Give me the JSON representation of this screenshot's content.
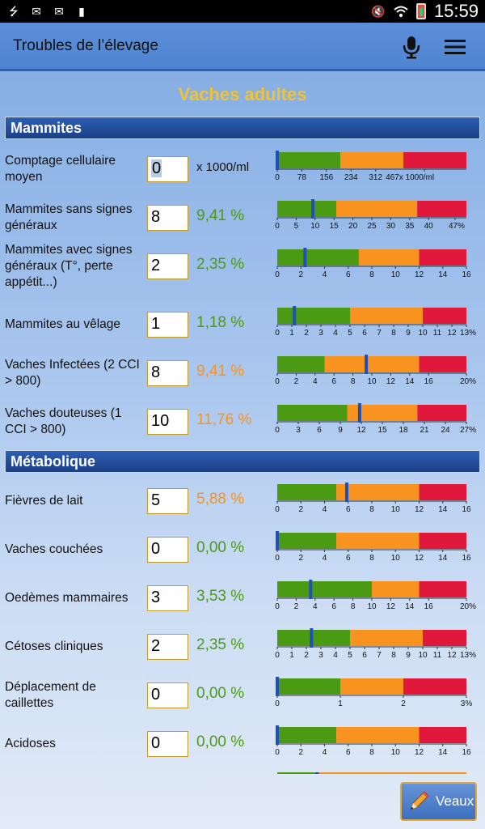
{
  "status_bar": {
    "time": "15:59",
    "left_icons": [
      "usb-icon",
      "mail-icon",
      "mail-icon",
      "usb-stick-icon"
    ],
    "right_icons": [
      "mute-icon",
      "wifi-icon",
      "battery-icon"
    ]
  },
  "app_bar": {
    "title": "Troubles de l’élevage",
    "icons": [
      "microphone-icon",
      "hamburger-menu-icon"
    ]
  },
  "heading": "Vaches adultes",
  "colors": {
    "green": "#4b9a14",
    "orange": "#f7931e",
    "red": "#e0193c",
    "marker": "#1f4fb8",
    "heading_yellow": "#f1c232",
    "pct_green": "#4b9a14",
    "pct_orange": "#f7931e"
  },
  "sections": [
    {
      "title": "Mammites",
      "rows": [
        {
          "label": "Comptage cellulaire moyen",
          "value": "0",
          "unit": "x 1000/ml",
          "pct": "",
          "pct_color": "",
          "gauge": {
            "max": 600,
            "green_end": 200,
            "orange_end": 400,
            "marker": 0,
            "ticks": [
              {
                "v": 0,
                "t": "0"
              },
              {
                "v": 78,
                "t": "78"
              },
              {
                "v": 156,
                "t": "156"
              },
              {
                "v": 234,
                "t": "234"
              },
              {
                "v": 312,
                "t": "312"
              },
              {
                "v": 467,
                "t": "467x 1000/ml"
              }
            ]
          }
        },
        {
          "label": "Mammites sans signes généraux",
          "value": "8",
          "unit": "",
          "pct": "9,41 %",
          "pct_color": "green",
          "gauge": {
            "max": 50,
            "green_end": 15.6,
            "orange_end": 37,
            "marker": 9.41,
            "ticks": [
              {
                "v": 0,
                "t": "0"
              },
              {
                "v": 5,
                "t": "5"
              },
              {
                "v": 10,
                "t": "10"
              },
              {
                "v": 15,
                "t": "15"
              },
              {
                "v": 20,
                "t": "20"
              },
              {
                "v": 25,
                "t": "25"
              },
              {
                "v": 30,
                "t": "30"
              },
              {
                "v": 35,
                "t": "35"
              },
              {
                "v": 40,
                "t": "40"
              },
              {
                "v": 47,
                "t": "47%"
              }
            ]
          }
        },
        {
          "label": "Mammites avec signes généraux (T°, perte appétit...)",
          "value": "2",
          "unit": "",
          "pct": "2,35 %",
          "pct_color": "green",
          "gauge": {
            "max": 16,
            "green_end": 6.9,
            "orange_end": 12,
            "marker": 2.35,
            "ticks": [
              {
                "v": 0,
                "t": "0"
              },
              {
                "v": 2,
                "t": "2"
              },
              {
                "v": 4,
                "t": "4"
              },
              {
                "v": 6,
                "t": "6"
              },
              {
                "v": 8,
                "t": "8"
              },
              {
                "v": 10,
                "t": "10"
              },
              {
                "v": 12,
                "t": "12"
              },
              {
                "v": 14,
                "t": "14"
              },
              {
                "v": 16,
                "t": "16"
              }
            ]
          }
        },
        {
          "label": "Mammites au vêlage",
          "value": "1",
          "unit": "",
          "pct": "1,18 %",
          "pct_color": "green",
          "gauge": {
            "max": 13,
            "green_end": 5,
            "orange_end": 10,
            "marker": 1.18,
            "ticks": [
              {
                "v": 0,
                "t": "0"
              },
              {
                "v": 1,
                "t": "1"
              },
              {
                "v": 2,
                "t": "2"
              },
              {
                "v": 3,
                "t": "3"
              },
              {
                "v": 4,
                "t": "4"
              },
              {
                "v": 5,
                "t": "5"
              },
              {
                "v": 6,
                "t": "6"
              },
              {
                "v": 7,
                "t": "7"
              },
              {
                "v": 8,
                "t": "8"
              },
              {
                "v": 9,
                "t": "9"
              },
              {
                "v": 10,
                "t": "10"
              },
              {
                "v": 11,
                "t": "11"
              },
              {
                "v": 12,
                "t": "12"
              },
              {
                "v": 13,
                "t": "13%"
              }
            ]
          }
        },
        {
          "label": "Vaches Infectées (2 CCI > 800)",
          "value": "8",
          "unit": "",
          "pct": "9,41 %",
          "pct_color": "orange",
          "gauge": {
            "max": 20,
            "green_end": 5,
            "orange_end": 15,
            "marker": 9.41,
            "ticks": [
              {
                "v": 0,
                "t": "0"
              },
              {
                "v": 2,
                "t": "2"
              },
              {
                "v": 4,
                "t": "4"
              },
              {
                "v": 6,
                "t": "6"
              },
              {
                "v": 8,
                "t": "8"
              },
              {
                "v": 10,
                "t": "10"
              },
              {
                "v": 12,
                "t": "12"
              },
              {
                "v": 14,
                "t": "14"
              },
              {
                "v": 16,
                "t": "16"
              },
              {
                "v": 20,
                "t": "20%"
              }
            ]
          }
        },
        {
          "label": "Vaches douteuses (1 CCI > 800)",
          "value": "10",
          "unit": "",
          "pct": "11,76 %",
          "pct_color": "orange",
          "gauge": {
            "max": 27,
            "green_end": 10,
            "orange_end": 20,
            "marker": 11.76,
            "ticks": [
              {
                "v": 0,
                "t": "0"
              },
              {
                "v": 3,
                "t": "3"
              },
              {
                "v": 6,
                "t": "6"
              },
              {
                "v": 9,
                "t": "9"
              },
              {
                "v": 12,
                "t": "12"
              },
              {
                "v": 15,
                "t": "15"
              },
              {
                "v": 18,
                "t": "18"
              },
              {
                "v": 21,
                "t": "21"
              },
              {
                "v": 24,
                "t": "24"
              },
              {
                "v": 27,
                "t": "27%"
              }
            ]
          }
        }
      ]
    },
    {
      "title": "Métabolique",
      "rows": [
        {
          "label": "Fièvres de lait",
          "value": "5",
          "unit": "",
          "pct": "5,88 %",
          "pct_color": "orange",
          "gauge": {
            "max": 16,
            "green_end": 5,
            "orange_end": 12,
            "marker": 5.88,
            "ticks": [
              {
                "v": 0,
                "t": "0"
              },
              {
                "v": 2,
                "t": "2"
              },
              {
                "v": 4,
                "t": "4"
              },
              {
                "v": 6,
                "t": "6"
              },
              {
                "v": 8,
                "t": "8"
              },
              {
                "v": 10,
                "t": "10"
              },
              {
                "v": 12,
                "t": "12"
              },
              {
                "v": 14,
                "t": "14"
              },
              {
                "v": 16,
                "t": "16"
              }
            ]
          }
        },
        {
          "label": "Vaches couchées",
          "value": "0",
          "unit": "",
          "pct": "0,00 %",
          "pct_color": "green",
          "gauge": {
            "max": 16,
            "green_end": 5,
            "orange_end": 12,
            "marker": 0,
            "ticks": [
              {
                "v": 0,
                "t": "0"
              },
              {
                "v": 2,
                "t": "2"
              },
              {
                "v": 4,
                "t": "4"
              },
              {
                "v": 6,
                "t": "6"
              },
              {
                "v": 8,
                "t": "8"
              },
              {
                "v": 10,
                "t": "10"
              },
              {
                "v": 12,
                "t": "12"
              },
              {
                "v": 14,
                "t": "14"
              },
              {
                "v": 16,
                "t": "16"
              }
            ]
          }
        },
        {
          "label": "Oedèmes mammaires",
          "value": "3",
          "unit": "",
          "pct": "3,53 %",
          "pct_color": "green",
          "gauge": {
            "max": 20,
            "green_end": 10,
            "orange_end": 15,
            "marker": 3.53,
            "ticks": [
              {
                "v": 0,
                "t": "0"
              },
              {
                "v": 2,
                "t": "2"
              },
              {
                "v": 4,
                "t": "4"
              },
              {
                "v": 6,
                "t": "6"
              },
              {
                "v": 8,
                "t": "8"
              },
              {
                "v": 10,
                "t": "10"
              },
              {
                "v": 12,
                "t": "12"
              },
              {
                "v": 14,
                "t": "14"
              },
              {
                "v": 16,
                "t": "16"
              },
              {
                "v": 20,
                "t": "20%"
              }
            ]
          }
        },
        {
          "label": "Cétoses cliniques",
          "value": "2",
          "unit": "",
          "pct": "2,35 %",
          "pct_color": "green",
          "gauge": {
            "max": 13,
            "green_end": 5,
            "orange_end": 10,
            "marker": 2.35,
            "ticks": [
              {
                "v": 0,
                "t": "0"
              },
              {
                "v": 1,
                "t": "1"
              },
              {
                "v": 2,
                "t": "2"
              },
              {
                "v": 3,
                "t": "3"
              },
              {
                "v": 4,
                "t": "4"
              },
              {
                "v": 5,
                "t": "5"
              },
              {
                "v": 6,
                "t": "6"
              },
              {
                "v": 7,
                "t": "7"
              },
              {
                "v": 8,
                "t": "8"
              },
              {
                "v": 9,
                "t": "9"
              },
              {
                "v": 10,
                "t": "10"
              },
              {
                "v": 11,
                "t": "11"
              },
              {
                "v": 12,
                "t": "12"
              },
              {
                "v": 13,
                "t": "13%"
              }
            ]
          }
        },
        {
          "label": "Déplacement de caillettes",
          "value": "0",
          "unit": "",
          "pct": "0,00 %",
          "pct_color": "green",
          "gauge": {
            "max": 3,
            "green_end": 1,
            "orange_end": 2,
            "marker": 0,
            "ticks": [
              {
                "v": 0,
                "t": "0"
              },
              {
                "v": 1,
                "t": "1"
              },
              {
                "v": 2,
                "t": "2"
              },
              {
                "v": 3,
                "t": "3%"
              }
            ]
          }
        },
        {
          "label": "Acidoses",
          "value": "0",
          "unit": "",
          "pct": "0,00 %",
          "pct_color": "green",
          "gauge": {
            "max": 16,
            "green_end": 5,
            "orange_end": 12,
            "marker": 0,
            "ticks": [
              {
                "v": 0,
                "t": "0"
              },
              {
                "v": 2,
                "t": "2"
              },
              {
                "v": 4,
                "t": "4"
              },
              {
                "v": 6,
                "t": "6"
              },
              {
                "v": 8,
                "t": "8"
              },
              {
                "v": 10,
                "t": "10"
              },
              {
                "v": 12,
                "t": "12"
              },
              {
                "v": 14,
                "t": "14"
              },
              {
                "v": 16,
                "t": "16"
              }
            ]
          }
        }
      ]
    }
  ],
  "veaux_button": {
    "label": "Veaux",
    "icon": "pencil-icon"
  }
}
